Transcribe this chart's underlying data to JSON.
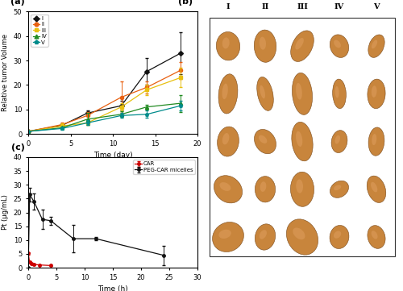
{
  "panel_a": {
    "label": "(a)",
    "series": {
      "I": {
        "color": "#111111",
        "marker": "D",
        "linestyle": "-",
        "x": [
          0,
          4,
          7,
          11,
          14,
          18
        ],
        "y": [
          1,
          3.5,
          8.5,
          11.5,
          25.5,
          33.0
        ],
        "yerr": [
          0.0,
          0.5,
          1.2,
          2.0,
          5.5,
          8.5
        ]
      },
      "II": {
        "color": "#e86010",
        "marker": "o",
        "linestyle": "-",
        "x": [
          0,
          4,
          7,
          11,
          14,
          18
        ],
        "y": [
          1,
          3.8,
          7.5,
          15.0,
          19.0,
          26.0
        ],
        "yerr": [
          0.0,
          0.8,
          1.5,
          6.5,
          2.5,
          3.5
        ]
      },
      "III": {
        "color": "#e8c010",
        "marker": "s",
        "linestyle": "-",
        "x": [
          0,
          4,
          7,
          11,
          14,
          18
        ],
        "y": [
          1,
          3.2,
          4.5,
          11.0,
          18.0,
          23.0
        ],
        "yerr": [
          0.0,
          1.2,
          0.8,
          1.5,
          2.0,
          4.0
        ]
      },
      "IV": {
        "color": "#228b22",
        "marker": "^",
        "linestyle": "-",
        "x": [
          0,
          4,
          7,
          11,
          14,
          18
        ],
        "y": [
          1,
          2.5,
          6.0,
          8.0,
          11.0,
          12.5
        ],
        "yerr": [
          0.0,
          0.5,
          2.5,
          1.2,
          1.0,
          3.5
        ]
      },
      "V": {
        "color": "#008b8b",
        "marker": "p",
        "linestyle": "-",
        "x": [
          0,
          4,
          7,
          11,
          14,
          18
        ],
        "y": [
          1,
          2.2,
          4.5,
          7.5,
          8.0,
          11.5
        ],
        "yerr": [
          0.0,
          0.5,
          1.0,
          1.0,
          1.5,
          2.0
        ]
      }
    },
    "xlabel": "Time (day)",
    "ylabel": "Relative tumor Volume",
    "xlim": [
      0,
      20
    ],
    "ylim": [
      0,
      50
    ],
    "xticks": [
      0,
      5,
      10,
      15,
      20
    ],
    "yticks": [
      0,
      10,
      20,
      30,
      40,
      50
    ]
  },
  "panel_b": {
    "label": "(b)",
    "headers": [
      "I",
      "II",
      "III",
      "IV",
      "V"
    ],
    "bg_color": "#3a9a3a",
    "text_color": "#000000",
    "rows": 5,
    "cols": 5
  },
  "panel_c": {
    "label": "(c)",
    "car": {
      "color": "#cc0000",
      "x": [
        0,
        0.25,
        0.5,
        1.0,
        2.0,
        4.0
      ],
      "y": [
        5.2,
        2.0,
        1.5,
        1.2,
        1.0,
        0.8
      ],
      "yerr": [
        0.5,
        0.3,
        0.3,
        0.3,
        0.2,
        0.2
      ],
      "label": "CAR"
    },
    "peg": {
      "color": "#111111",
      "x": [
        0,
        0.25,
        1.0,
        2.5,
        4.0,
        8.0,
        12.0,
        24.0
      ],
      "y": [
        0,
        26.5,
        24.0,
        17.5,
        17.0,
        10.5,
        10.5,
        4.5
      ],
      "yerr": [
        0,
        2.5,
        3.0,
        3.5,
        1.5,
        5.0,
        0.5,
        3.5
      ],
      "label": "PEG-CAR micelles"
    },
    "xlabel": "Time (h)",
    "ylabel": "Pt (μg/mL)",
    "xlim": [
      0,
      30
    ],
    "ylim": [
      0,
      40
    ],
    "xticks": [
      0,
      5,
      10,
      15,
      20,
      25,
      30
    ],
    "yticks": [
      0,
      5,
      10,
      15,
      20,
      25,
      30,
      35,
      40
    ]
  }
}
